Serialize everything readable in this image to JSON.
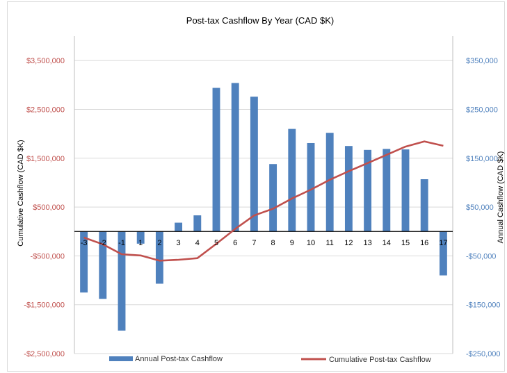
{
  "chart_data": {
    "type": "bar",
    "title": "Post-tax Cashflow By Year (CAD $K)",
    "categories": [
      "-3",
      "-2",
      "-1",
      "1",
      "2",
      "3",
      "4",
      "5",
      "6",
      "7",
      "8",
      "9",
      "10",
      "11",
      "12",
      "13",
      "14",
      "15",
      "16",
      "17"
    ],
    "series": [
      {
        "name": "Annual Post-tax Cashflow",
        "type": "bar",
        "axis": "right",
        "color": "#4f81bd",
        "values": [
          -125000,
          -138000,
          -203000,
          -25000,
          -107000,
          18000,
          33000,
          294000,
          304000,
          276000,
          138000,
          210000,
          181000,
          202000,
          175000,
          167000,
          169000,
          168000,
          107000,
          -90000
        ]
      },
      {
        "name": "Cumulative Post-tax Cashflow",
        "type": "line",
        "axis": "left",
        "color": "#c0504d",
        "values": [
          -125000,
          -263000,
          -466000,
          -491000,
          -598000,
          -580000,
          -547000,
          -253000,
          51000,
          327000,
          465000,
          675000,
          856000,
          1058000,
          1233000,
          1400000,
          1569000,
          1737000,
          1844000,
          1754000
        ]
      }
    ],
    "y_left": {
      "label": "Cumulative Cashflow (CAD $K)",
      "ylim": [
        -2500000,
        4000000
      ],
      "ticks": [
        3500000,
        2500000,
        1500000,
        500000,
        -500000,
        -1500000,
        -2500000
      ],
      "tick_labels": [
        "$3,500,000",
        "$2,500,000",
        "$1,500,000",
        "$500,000",
        "-$500,000",
        "-$1,500,000",
        "-$2,500,000"
      ],
      "color": "#c0504d"
    },
    "y_right": {
      "label": "Annual Cashflow (CAD $K)",
      "ylim": [
        -250000,
        400000
      ],
      "ticks": [
        350000,
        250000,
        150000,
        50000,
        -50000,
        -150000,
        -250000
      ],
      "tick_labels": [
        "$350,000",
        "$250,000",
        "$150,000",
        "$50,000",
        "-$50,000",
        "-$150,000",
        "-$250,000"
      ],
      "color": "#4f81bd"
    },
    "grid": true,
    "legend": "bottom"
  }
}
